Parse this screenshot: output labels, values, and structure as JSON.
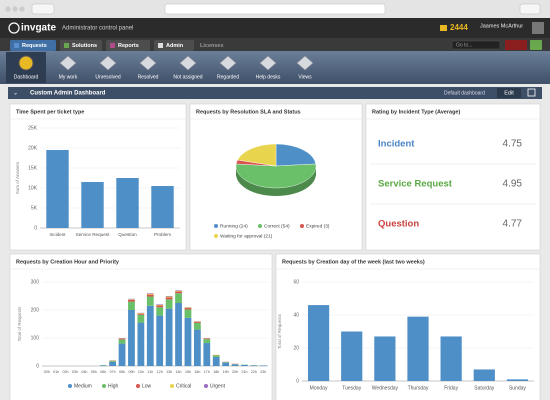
{
  "header": {
    "logo": "invgate",
    "subtitle": "Administrator control panel",
    "counter": "2444",
    "user": "Jaames McArthur"
  },
  "tabs": [
    "Requests",
    "Solutions",
    "Reports",
    "Admin",
    "Licenses"
  ],
  "search": "Go to...",
  "toolbar": [
    "Dashboard",
    "My work",
    "Unresolved",
    "Resolved",
    "Not assigned",
    "Regarded",
    "Help desks",
    "Views"
  ],
  "dashboard": {
    "title": "Custom Admin Dashboard",
    "selector": "Default dashboard",
    "edit": "Edit"
  },
  "rating": {
    "title": "Rating by Incident Type (Average)",
    "rows": [
      {
        "label": "Incident",
        "value": 4.75,
        "color": "#4a86c5"
      },
      {
        "label": "Service Request",
        "value": 4.95,
        "color": "#5aa845"
      },
      {
        "label": "Question",
        "value": 4.77,
        "color": "#c9413f"
      }
    ]
  },
  "chart_data": [
    {
      "type": "bar",
      "title": "Time Spent per ticket type",
      "y_label": "Sum of Answers",
      "categories": [
        "Incident",
        "Service Request",
        "Question",
        "Problem"
      ],
      "values": [
        19500,
        11500,
        12500,
        10500
      ],
      "color": "#4f8fc8",
      "ylim": [
        0,
        25000
      ],
      "yticks": [
        0,
        {
          "value": 5000,
          "label": "5K"
        },
        {
          "value": 10000,
          "label": "10K"
        },
        {
          "value": 15000,
          "label": "15K"
        },
        {
          "value": 20000,
          "label": "20K"
        },
        {
          "value": 25000,
          "label": "25K"
        }
      ],
      "grid": true
    },
    {
      "type": "pie",
      "title": "Requests by Resolution SLA and Status",
      "categories": [
        "Running",
        "Correct",
        "Expired",
        "Waiting for approval"
      ],
      "values": [
        24,
        54,
        3,
        21
      ],
      "legend_labels": [
        "Running (24)",
        "Correct (54)",
        "Expired (3)",
        "Waiting for approval (21)"
      ],
      "colors": [
        "#4f8fc8",
        "#6abf69",
        "#d9534f",
        "#e8d44d"
      ]
    },
    {
      "type": "stacked_bar",
      "title": "Requests by Creation Hour and Priority",
      "y_label": "Total of Requests",
      "categories": [
        "00h",
        "01h",
        "02h",
        "03h",
        "04h",
        "05h",
        "06h",
        "07h",
        "08h",
        "09h",
        "10h",
        "11h",
        "12h",
        "13h",
        "14h",
        "15h",
        "16h",
        "17h",
        "18h",
        "19h",
        "20h",
        "21h",
        "22h",
        "23h"
      ],
      "series": [
        {
          "name": "Medium",
          "color": "#4f8fc8",
          "values": [
            0,
            0,
            0,
            0,
            0,
            0,
            2,
            15,
            80,
            200,
            155,
            215,
            180,
            205,
            225,
            172,
            130,
            82,
            32,
            12,
            6,
            4,
            2,
            2
          ]
        },
        {
          "name": "High",
          "color": "#6abf69",
          "values": [
            0,
            0,
            0,
            0,
            0,
            0,
            1,
            4,
            15,
            30,
            28,
            33,
            30,
            33,
            35,
            30,
            24,
            14,
            6,
            2,
            1,
            1,
            1,
            0
          ]
        },
        {
          "name": "Low",
          "color": "#d9534f",
          "values": [
            0,
            0,
            0,
            0,
            0,
            0,
            0,
            1,
            3,
            6,
            4,
            7,
            6,
            7,
            6,
            5,
            4,
            2,
            1,
            1,
            1,
            0,
            0,
            0
          ]
        },
        {
          "name": "Critical",
          "color": "#e8d44d",
          "values": [
            0,
            0,
            0,
            0,
            0,
            0,
            0,
            0,
            1,
            2,
            2,
            3,
            2,
            3,
            2,
            2,
            1,
            1,
            1,
            0,
            0,
            0,
            0,
            0
          ]
        },
        {
          "name": "Urgent",
          "color": "#9b6bbf",
          "values": [
            0,
            0,
            0,
            0,
            0,
            0,
            0,
            0,
            1,
            2,
            1,
            2,
            2,
            2,
            2,
            1,
            1,
            1,
            0,
            0,
            0,
            0,
            0,
            0
          ]
        }
      ],
      "ylim": [
        0,
        300
      ],
      "yticks": [
        0,
        100,
        200,
        300
      ],
      "grid": true
    },
    {
      "type": "bar",
      "title": "Requests by Creation day of the week (last two weeks)",
      "y_label": "Total of Requests",
      "categories": [
        "Monday",
        "Tuesday",
        "Wednesday",
        "Thursday",
        "Friday",
        "Saturday",
        "Sunday"
      ],
      "values": [
        46,
        30,
        27,
        39,
        27,
        7,
        1
      ],
      "color": "#4f8fc8",
      "ylim": [
        0,
        60
      ],
      "yticks": [
        0,
        20,
        40,
        60
      ],
      "grid": true
    }
  ]
}
